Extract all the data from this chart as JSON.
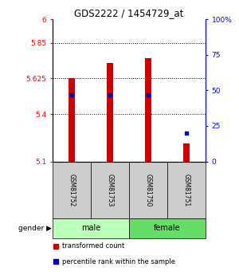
{
  "title": "GDS2222 / 1454729_at",
  "samples": [
    "GSM81752",
    "GSM81753",
    "GSM81750",
    "GSM81751"
  ],
  "gender_labels": [
    "male",
    "female"
  ],
  "bar_values": [
    5.625,
    5.725,
    5.755,
    5.215
  ],
  "bar_base": 5.1,
  "percentile_values": [
    47,
    47,
    47,
    20
  ],
  "ylim_left": [
    5.1,
    6.0
  ],
  "ylim_right": [
    0,
    100
  ],
  "yticks_left": [
    5.1,
    5.4,
    5.625,
    5.85,
    6.0
  ],
  "ytick_labels_left": [
    "5.1",
    "5.4",
    "5.625",
    "5.85",
    "6"
  ],
  "yticks_right": [
    0,
    25,
    50,
    75,
    100
  ],
  "ytick_labels_right": [
    "0",
    "25",
    "50",
    "75",
    "100%"
  ],
  "hlines": [
    5.4,
    5.625,
    5.85
  ],
  "bar_color": "#cc0000",
  "dot_color": "#0000cc",
  "male_color": "#bbffbb",
  "female_color": "#66dd66",
  "sample_bg_color": "#cccccc",
  "legend_bar_label": "transformed count",
  "legend_dot_label": "percentile rank within the sample",
  "gender_label": "gender",
  "bar_width": 0.18
}
